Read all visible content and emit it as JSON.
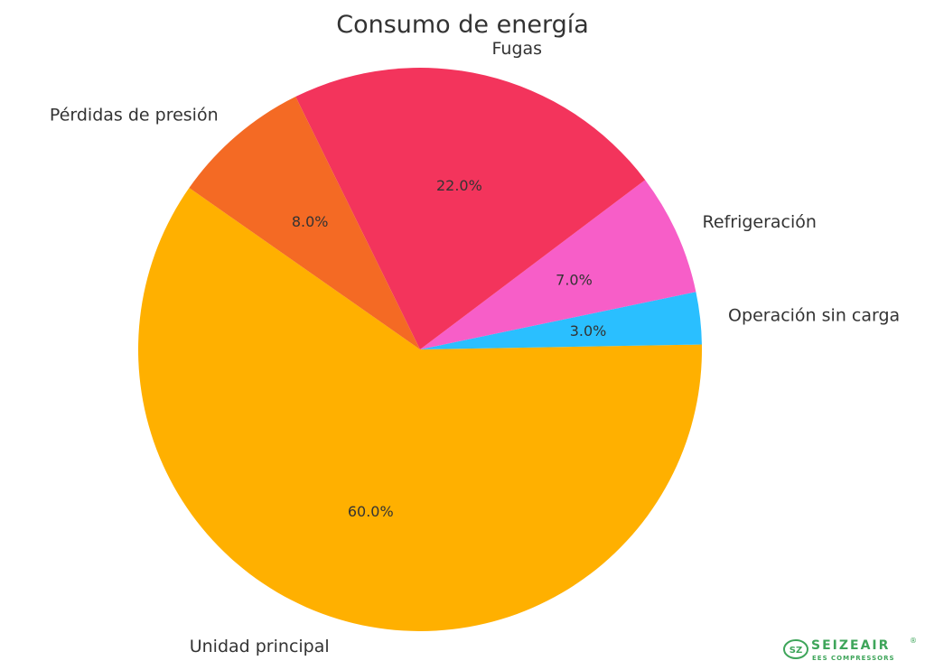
{
  "chart_data": {
    "type": "pie",
    "title": "Consumo de energía",
    "categories": [
      "Unidad principal",
      "Operación sin carga",
      "Refrigeración",
      "Fugas",
      "Pérdidas de presión"
    ],
    "values": [
      60.0,
      3.0,
      7.0,
      22.0,
      8.0
    ],
    "value_labels": [
      "60.0%",
      "3.0%",
      "7.0%",
      "22.0%",
      "8.0%"
    ],
    "colors": [
      "#ffb000",
      "#2abfff",
      "#f75ec8",
      "#f3345c",
      "#f46a24"
    ],
    "start_angle_deg": 145,
    "direction": "counterclockwise"
  },
  "logo": {
    "brand": "SEIZEAIR",
    "registered": "®",
    "tagline": "EES COMPRESSORS",
    "mark": "SZ"
  }
}
